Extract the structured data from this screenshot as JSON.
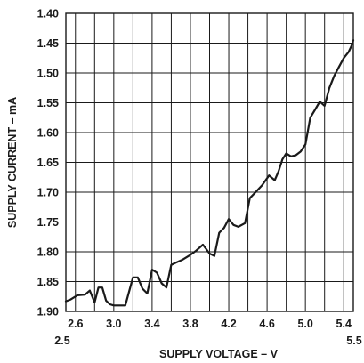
{
  "chart_data": {
    "type": "line",
    "title": "",
    "xlabel": "SUPPLY VOLTAGE – V",
    "ylabel": "SUPPLY CURRENT – mA",
    "xlim": [
      2.5,
      5.5
    ],
    "ylim": [
      1.4,
      1.9
    ],
    "y_inverted": true,
    "grid": true,
    "x_ticks": [
      "2.6",
      "3.0",
      "3.4",
      "3.8",
      "4.2",
      "4.6",
      "5.0",
      "5.4"
    ],
    "x_tick_values": [
      2.6,
      3.0,
      3.4,
      3.8,
      4.2,
      4.6,
      5.0,
      5.4
    ],
    "x_end_labels": [
      "2.5",
      "5.5"
    ],
    "y_ticks": [
      "1.40",
      "1.45",
      "1.50",
      "1.55",
      "1.60",
      "1.65",
      "1.70",
      "1.75",
      "1.80",
      "1.85",
      "1.90"
    ],
    "y_tick_values": [
      1.4,
      1.45,
      1.5,
      1.55,
      1.6,
      1.65,
      1.7,
      1.75,
      1.8,
      1.85,
      1.9
    ],
    "series": [
      {
        "x": [
          2.5,
          2.55,
          2.62,
          2.7,
          2.75,
          2.8,
          2.84,
          2.88,
          2.92,
          2.96,
          3.0,
          3.05,
          3.12,
          3.2,
          3.25,
          3.3,
          3.35,
          3.4,
          3.45,
          3.5,
          3.55,
          3.6,
          3.65,
          3.72,
          3.8,
          3.86,
          3.93,
          4.0,
          4.05,
          4.1,
          4.15,
          4.2,
          4.25,
          4.3,
          4.37,
          4.42,
          4.48,
          4.55,
          4.62,
          4.68,
          4.72,
          4.76,
          4.8,
          4.85,
          4.9,
          4.95,
          5.0,
          5.05,
          5.1,
          5.15,
          5.2,
          5.25,
          5.3,
          5.35,
          5.4,
          5.45,
          5.48,
          5.5
        ],
        "y": [
          1.883,
          1.88,
          1.873,
          1.872,
          1.865,
          1.885,
          1.86,
          1.86,
          1.882,
          1.888,
          1.89,
          1.89,
          1.89,
          1.843,
          1.843,
          1.862,
          1.87,
          1.83,
          1.835,
          1.853,
          1.86,
          1.822,
          1.818,
          1.813,
          1.805,
          1.798,
          1.788,
          1.803,
          1.807,
          1.768,
          1.76,
          1.745,
          1.755,
          1.758,
          1.752,
          1.71,
          1.7,
          1.688,
          1.672,
          1.68,
          1.665,
          1.645,
          1.635,
          1.64,
          1.638,
          1.632,
          1.62,
          1.575,
          1.562,
          1.548,
          1.555,
          1.525,
          1.505,
          1.49,
          1.475,
          1.465,
          1.455,
          1.445
        ]
      }
    ]
  }
}
